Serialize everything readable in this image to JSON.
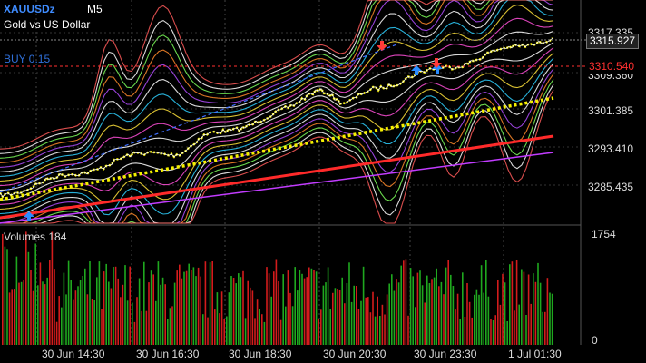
{
  "header": {
    "symbol": "XAUUSDz",
    "timeframe": "M5",
    "description": "Gold vs US Dollar",
    "order_label": "BUY 0.15"
  },
  "price_axis": {
    "labels": [
      "3317.335",
      "3309.360",
      "3301.385",
      "3293.410",
      "3285.435"
    ],
    "current_price": "3315.927",
    "buy_price": "3310.540"
  },
  "volume_panel": {
    "title": "Volumes 184",
    "max_label": "1754",
    "min_label": "0"
  },
  "time_axis": [
    "30 Jun 14:30",
    "30 Jun 16:30",
    "30 Jun 18:30",
    "30 Jun 20:30",
    "30 Jun 23:30",
    "1 Jul 01:30"
  ],
  "colors": {
    "background": "#000000",
    "price_line": "#ffffff",
    "trend_dotted": "#f5f000",
    "ma_slow": "#ff2a2a",
    "volume_up": "#1fa81f",
    "volume_down": "#d31c1c",
    "buy_arrow": "#2a8cff",
    "sell_arrow": "#ff3a3a"
  }
}
